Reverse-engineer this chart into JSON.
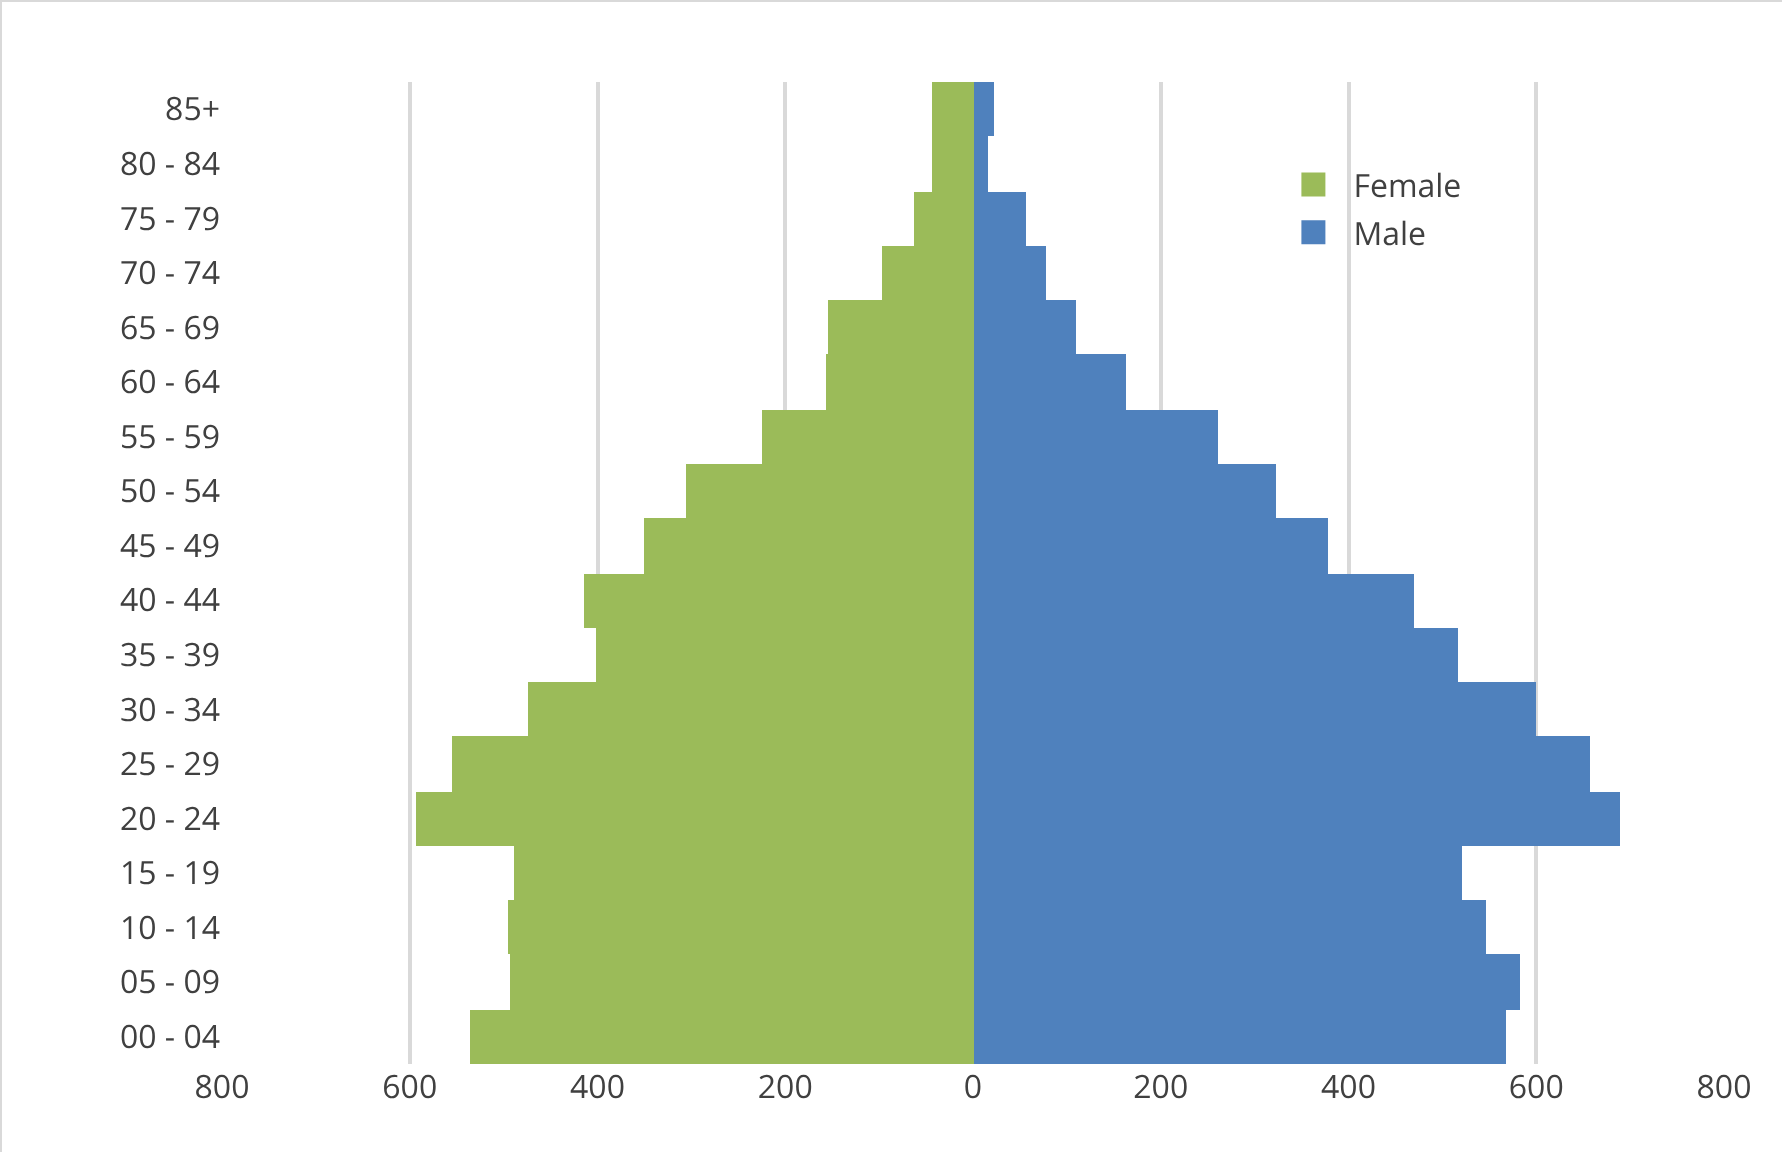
{
  "chart_data": {
    "type": "bar",
    "orientation": "horizontal",
    "stacked": true,
    "categories": [
      "85+",
      "80 - 84",
      "75 - 79",
      "70 - 74",
      "65 - 69",
      "60 - 64",
      "55 - 59",
      "50 - 54",
      "45 - 49",
      "40 - 44",
      "35 - 39",
      "30 - 34",
      "25 - 29",
      "20 - 24",
      "15 - 19",
      "10 - 14",
      "05 - 09",
      "00 - 04"
    ],
    "series": [
      {
        "name": "Female",
        "color": "#9bbb59",
        "values": [
          -44,
          -44,
          -62,
          -96,
          -154,
          -157,
          -224,
          -306,
          -351,
          -414,
          -401,
          -473,
          -556,
          -593,
          -490,
          -496,
          -494,
          -535
        ]
      },
      {
        "name": "Male",
        "color": "#4f81bd",
        "values": [
          23,
          17,
          57,
          77,
          109,
          162,
          261,
          323,
          378,
          470,
          516,
          600,
          657,
          690,
          520,
          546,
          583,
          568
        ]
      }
    ],
    "xlim": [
      -800,
      800
    ],
    "xticks": [
      {
        "value": -800,
        "label": "800"
      },
      {
        "value": -600,
        "label": "600"
      },
      {
        "value": -400,
        "label": "400"
      },
      {
        "value": -200,
        "label": "200"
      },
      0,
      200,
      400,
      600,
      800
    ],
    "grid": "x",
    "legend": "top right"
  }
}
